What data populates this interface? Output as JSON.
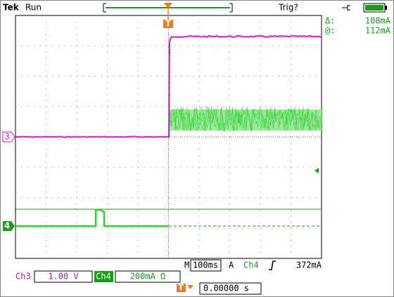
{
  "header": {
    "brand": "Tek",
    "status": "Run",
    "trigger_status": "Trig?"
  },
  "cursor_readout": {
    "delta_label": "Δ:",
    "delta_value": "108mA",
    "at_label": "@:",
    "at_value": "112mA"
  },
  "markers": {
    "ch3": "3",
    "ch4": "4",
    "trigger": "T"
  },
  "footer": {
    "ch3_label": "Ch3",
    "ch3_scale": "1.00 V",
    "ch4_label": "Ch4",
    "ch4_scale": "200mA Ω",
    "time_label": "M",
    "time_scale": "100ms",
    "trigger_mode": "A",
    "trigger_source": "Ch4",
    "trigger_level": "372mA",
    "trigger_position": "0.00000 s"
  }
}
